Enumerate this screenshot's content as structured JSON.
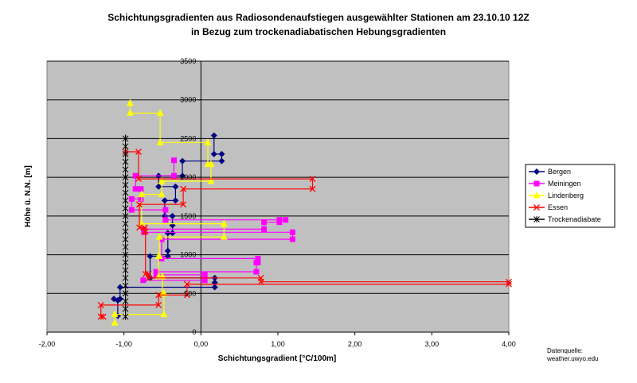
{
  "chart_data": {
    "type": "scatter",
    "title": "Schichtungsgradienten aus Radiosondenaufstiegen ausgewählter Stationen am 23.10.10 12Z",
    "subtitle": "in Bezug zum trockenadiabatischen Hebungsgradienten",
    "xlabel": "Schichtungsgradient [°C/100m]",
    "ylabel": "Höhe ü. N.N. [m]",
    "xlim": [
      -2,
      4
    ],
    "ylim": [
      0,
      3500
    ],
    "x_ticks": [
      "-2,00",
      "-1,00",
      "0,00",
      "1,00",
      "2,00",
      "3,00",
      "4,00"
    ],
    "y_ticks": [
      "0",
      "500",
      "1000",
      "1500",
      "2000",
      "2500",
      "3000",
      "3500"
    ],
    "grid": "horizontal",
    "plot_background": "#c0c0c0",
    "legend_position": "right",
    "source_note": [
      "Datenquelle:",
      "weather.uwyo.edu"
    ],
    "series": [
      {
        "name": "Bergen",
        "color": "#000080",
        "marker": "diamond",
        "points": [
          [
            -1.08,
            210
          ],
          [
            -1.08,
            410
          ],
          [
            -1.13,
            430
          ],
          [
            -1.05,
            430
          ],
          [
            -1.05,
            580
          ],
          [
            0.18,
            580
          ],
          [
            0.18,
            640
          ],
          [
            0.18,
            700
          ],
          [
            -0.66,
            700
          ],
          [
            -0.66,
            980
          ],
          [
            -0.43,
            980
          ],
          [
            -0.43,
            1050
          ],
          [
            -0.43,
            1280
          ],
          [
            -0.37,
            1280
          ],
          [
            -0.37,
            1380
          ],
          [
            -0.37,
            1500
          ],
          [
            -0.47,
            1500
          ],
          [
            -0.47,
            1700
          ],
          [
            -0.33,
            1700
          ],
          [
            -0.33,
            1880
          ],
          [
            -0.55,
            1880
          ],
          [
            -0.55,
            2020
          ],
          [
            -0.24,
            2020
          ],
          [
            -0.24,
            2210
          ],
          [
            0.27,
            2210
          ],
          [
            0.27,
            2300
          ],
          [
            0.17,
            2300
          ],
          [
            0.17,
            2540
          ]
        ]
      },
      {
        "name": "Meiningen",
        "color": "#ff00ff",
        "marker": "square",
        "points": [
          [
            -0.75,
            670
          ],
          [
            0.05,
            670
          ],
          [
            0.05,
            740
          ],
          [
            -0.58,
            740
          ],
          [
            -0.58,
            780
          ],
          [
            0.72,
            780
          ],
          [
            0.72,
            900
          ],
          [
            0.74,
            900
          ],
          [
            0.74,
            950
          ],
          [
            -0.51,
            950
          ],
          [
            -0.51,
            1200
          ],
          [
            1.19,
            1200
          ],
          [
            1.19,
            1290
          ],
          [
            -0.74,
            1290
          ],
          [
            -0.74,
            1330
          ],
          [
            0.82,
            1330
          ],
          [
            0.82,
            1420
          ],
          [
            1.02,
            1420
          ],
          [
            1.02,
            1450
          ],
          [
            1.1,
            1450
          ],
          [
            -0.46,
            1450
          ],
          [
            -0.46,
            1580
          ],
          [
            -0.9,
            1580
          ],
          [
            -0.9,
            1720
          ],
          [
            -0.78,
            1720
          ],
          [
            -0.78,
            1850
          ],
          [
            -0.85,
            1850
          ],
          [
            -0.85,
            2020
          ],
          [
            -0.35,
            2020
          ],
          [
            -0.35,
            2220
          ]
        ]
      },
      {
        "name": "Lindenberg",
        "color": "#ffff00",
        "marker": "triangle",
        "points": [
          [
            -1.12,
            120
          ],
          [
            -1.12,
            230
          ],
          [
            -0.48,
            230
          ],
          [
            -0.48,
            500
          ],
          [
            -0.5,
            500
          ],
          [
            -0.5,
            720
          ],
          [
            -0.55,
            720
          ],
          [
            -0.55,
            980
          ],
          [
            -0.54,
            980
          ],
          [
            -0.54,
            1230
          ],
          [
            0.3,
            1230
          ],
          [
            0.3,
            1400
          ],
          [
            -0.77,
            1400
          ],
          [
            -0.77,
            1780
          ],
          [
            -0.51,
            1780
          ],
          [
            -0.51,
            1950
          ],
          [
            0.13,
            1950
          ],
          [
            0.13,
            2170
          ],
          [
            0.09,
            2170
          ],
          [
            0.09,
            2450
          ],
          [
            -0.53,
            2450
          ],
          [
            -0.53,
            2830
          ],
          [
            -0.92,
            2830
          ],
          [
            -0.92,
            2960
          ]
        ]
      },
      {
        "name": "Essen",
        "color": "#ff0000",
        "marker": "x",
        "points": [
          [
            -1.27,
            200
          ],
          [
            -1.3,
            200
          ],
          [
            -1.3,
            350
          ],
          [
            -0.55,
            350
          ],
          [
            -0.55,
            480
          ],
          [
            -0.18,
            480
          ],
          [
            -0.18,
            620
          ],
          [
            4.0,
            620
          ],
          [
            4.0,
            650
          ],
          [
            0.78,
            650
          ],
          [
            0.78,
            700
          ],
          [
            -0.68,
            700
          ],
          [
            -0.68,
            750
          ],
          [
            -0.72,
            750
          ],
          [
            -0.72,
            1300
          ],
          [
            -0.73,
            1300
          ],
          [
            -0.73,
            1350
          ],
          [
            -0.8,
            1350
          ],
          [
            -0.8,
            1650
          ],
          [
            -0.23,
            1650
          ],
          [
            -0.23,
            1850
          ],
          [
            1.45,
            1850
          ],
          [
            1.45,
            1980
          ],
          [
            -0.81,
            1980
          ],
          [
            -0.81,
            2330
          ],
          [
            -0.98,
            2330
          ]
        ]
      },
      {
        "name": "Trockenadiabate",
        "color": "#000000",
        "marker": "star",
        "points": [
          [
            -0.98,
            200
          ],
          [
            -0.98,
            2550
          ]
        ]
      }
    ]
  }
}
